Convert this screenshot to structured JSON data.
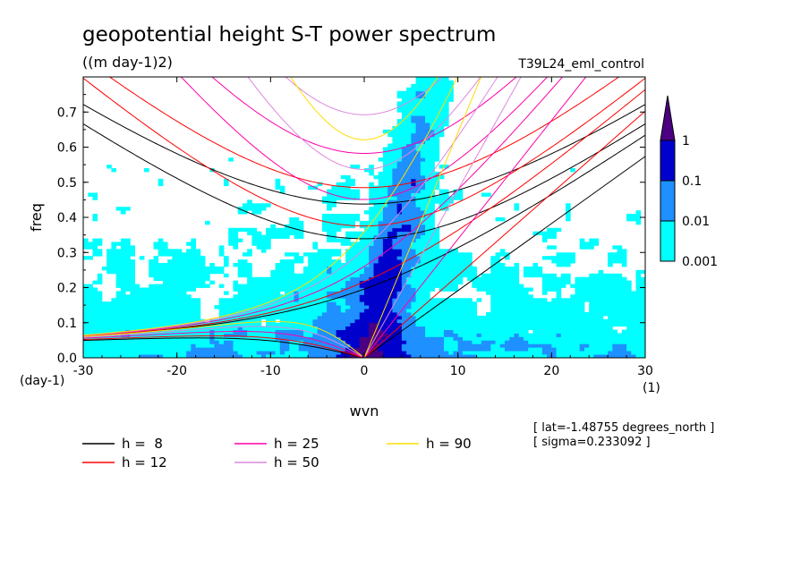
{
  "chart_data": {
    "type": "heatmap",
    "title": "geopotential height S-T power spectrum",
    "units": "((m day-1)2)",
    "experiment": "T39L24_eml_control",
    "xlabel": "wvn",
    "ylabel": "freq",
    "x_unit": "(1)",
    "y_unit": "(day-1)",
    "xlim": [
      -30,
      30
    ],
    "ylim": [
      0,
      0.8
    ],
    "x_ticks": [
      "-30",
      "-20",
      "-10",
      "0",
      "10",
      "20",
      "30"
    ],
    "y_ticks": [
      "0.0",
      "0.1",
      "0.2",
      "0.3",
      "0.4",
      "0.5",
      "0.6",
      "0.7"
    ],
    "colorbar": {
      "labels": [
        "0.001",
        "0.01",
        "0.1",
        "1"
      ],
      "colors": [
        "#00ffff",
        "#1e90ff",
        "#0000cd",
        "#4b0082"
      ]
    },
    "legend": [
      {
        "label": "h =  8",
        "color": "#000000",
        "h": 8
      },
      {
        "label": "h = 12",
        "color": "#ff0000",
        "h": 12
      },
      {
        "label": "h = 25",
        "color": "#ff00aa",
        "h": 25
      },
      {
        "label": "h = 50",
        "color": "#dd88dd",
        "h": 50
      },
      {
        "label": "h = 90",
        "color": "#ffdd00",
        "h": 90
      }
    ],
    "annotations": [
      "[ lat=-1.48755 degrees_north ]",
      "[ sigma=0.233092 ]"
    ]
  }
}
